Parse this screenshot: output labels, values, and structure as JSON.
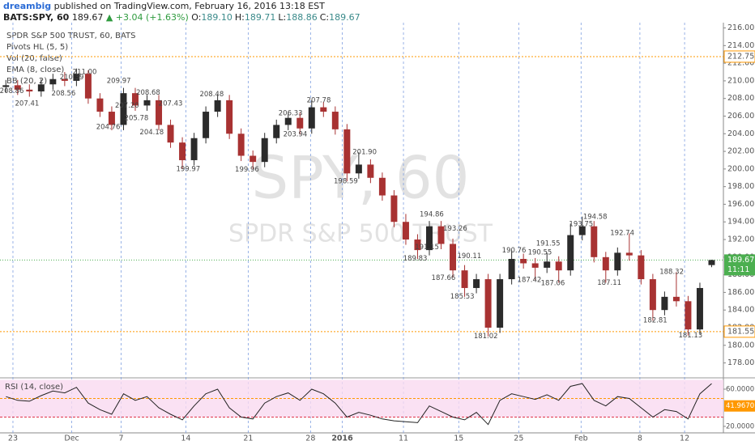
{
  "header": {
    "author": "dreambig",
    "published": "published on TradingView.com, February 16, 2016 13:18 EST",
    "symbol": "BATS:SPY, 60",
    "last": "189.67",
    "change": "▲ +3.04 (+1.63%)",
    "ohlc": [
      {
        "key": "O:",
        "value": "189.10"
      },
      {
        "key": "H:",
        "value": "189.71"
      },
      {
        "key": "L:",
        "value": "188.86"
      },
      {
        "key": "C:",
        "value": "189.67"
      }
    ]
  },
  "legend": [
    "SPDR S&P 500 TRUST, 60, BATS",
    "Pivots HL (5, 5)",
    "Vol (20, false)",
    "EMA (8, close)",
    "BB (20, 2)"
  ],
  "watermark": {
    "symbol": "SPY, 60",
    "name": "SPDR S&P 500 TRUST"
  },
  "chart_data": [
    {
      "type": "candlestick",
      "xlim": [
        -0.5,
        61
      ],
      "xticks": [
        {
          "value": 0.6,
          "label": "23"
        },
        {
          "value": 5.6,
          "label": "Dec"
        },
        {
          "value": 9.8,
          "label": "7"
        },
        {
          "value": 15.3,
          "label": "14"
        },
        {
          "value": 20.6,
          "label": "21"
        },
        {
          "value": 25.9,
          "label": "28"
        },
        {
          "value": 28.6,
          "label": "2016"
        },
        {
          "value": 33.8,
          "label": "11"
        },
        {
          "value": 38.5,
          "label": "15"
        },
        {
          "value": 43.6,
          "label": "25"
        },
        {
          "value": 48.9,
          "label": "Feb"
        },
        {
          "value": 53.9,
          "label": "8"
        },
        {
          "value": 57.7,
          "label": "12"
        }
      ],
      "ylim": [
        176.4,
        216.6
      ],
      "yticks": [
        {
          "value": 178,
          "label": "178.00"
        },
        {
          "value": 180,
          "label": "180.00"
        },
        {
          "value": 182,
          "label": "182.00"
        },
        {
          "value": 184,
          "label": "184.00"
        },
        {
          "value": 186,
          "label": "186.00"
        },
        {
          "value": 188,
          "label": "188.00"
        },
        {
          "value": 190,
          "label": "190.00"
        },
        {
          "value": 192,
          "label": "192.00"
        },
        {
          "value": 194,
          "label": "194.00"
        },
        {
          "value": 196,
          "label": "196.00"
        },
        {
          "value": 198,
          "label": "198.00"
        },
        {
          "value": 200,
          "label": "200.00"
        },
        {
          "value": 202,
          "label": "202.00"
        },
        {
          "value": 204,
          "label": "204.00"
        },
        {
          "value": 206,
          "label": "206.00"
        },
        {
          "value": 208,
          "label": "208.00"
        },
        {
          "value": 210,
          "label": "210.00"
        },
        {
          "value": 212,
          "label": "212.00"
        },
        {
          "value": 214,
          "label": "214.00"
        },
        {
          "value": 216,
          "label": "216.00"
        }
      ],
      "colors": {
        "up": "#2b2b2b",
        "down": "#a83232",
        "grid": "#7f9fe0"
      },
      "candles": {
        "open": [
          209.3,
          209.5,
          209.0,
          208.8,
          209.6,
          210.2,
          210.0,
          210.8,
          208.0,
          206.5,
          205.0,
          208.6,
          207.2,
          207.8,
          205.0,
          203.0,
          201.0,
          203.5,
          206.5,
          207.8,
          204.0,
          201.5,
          200.8,
          203.5,
          205.0,
          205.8,
          204.6,
          207.0,
          206.5,
          204.5,
          199.5,
          200.5,
          199.0,
          197.0,
          194.0,
          192.0,
          190.8,
          193.5,
          191.5,
          188.5,
          186.5,
          187.5,
          182.0,
          187.5,
          189.8,
          189.3,
          188.8,
          189.5,
          188.5,
          192.5,
          193.5,
          190.0,
          188.5,
          190.5,
          190.2,
          187.5,
          184.0,
          185.5,
          185.0,
          181.8,
          189.1
        ],
        "high": [
          210.1,
          210.1,
          209.6,
          210.2,
          210.8,
          211.0,
          211.4,
          211.2,
          208.6,
          207.1,
          209.2,
          209.2,
          208.4,
          208.4,
          205.6,
          203.6,
          204.1,
          207.1,
          208.5,
          208.4,
          204.6,
          202.1,
          204.1,
          205.6,
          206.4,
          206.4,
          207.8,
          207.6,
          207.1,
          205.1,
          201.9,
          201.1,
          199.6,
          197.6,
          194.9,
          192.6,
          194.1,
          194.1,
          192.1,
          189.1,
          188.1,
          188.1,
          188.1,
          190.8,
          190.4,
          189.9,
          190.5,
          190.1,
          193.8,
          194.6,
          194.1,
          190.6,
          191.1,
          192.7,
          190.8,
          188.1,
          186.1,
          188.3,
          185.6,
          187.1,
          189.71
        ],
        "low": [
          208.7,
          208.4,
          208.2,
          208.2,
          209.0,
          209.4,
          209.4,
          207.4,
          205.9,
          204.4,
          204.4,
          206.6,
          206.6,
          204.4,
          202.4,
          200.0,
          200.4,
          202.9,
          205.9,
          203.4,
          200.9,
          200.0,
          200.2,
          202.9,
          204.4,
          203.9,
          204.0,
          205.9,
          203.9,
          198.6,
          198.9,
          198.4,
          196.4,
          193.4,
          191.4,
          189.8,
          190.2,
          190.9,
          187.7,
          185.5,
          185.9,
          181.0,
          181.4,
          186.9,
          188.7,
          187.4,
          188.2,
          187.1,
          187.9,
          191.9,
          189.4,
          187.1,
          187.9,
          189.6,
          186.9,
          182.8,
          183.4,
          184.4,
          181.1,
          181.2,
          188.86
        ],
        "close": [
          209.5,
          209.0,
          208.8,
          209.6,
          210.2,
          210.0,
          210.8,
          208.0,
          206.5,
          205.0,
          208.6,
          207.2,
          207.8,
          205.0,
          203.0,
          201.0,
          203.5,
          206.5,
          207.8,
          204.0,
          201.5,
          200.8,
          203.5,
          205.0,
          205.8,
          204.6,
          207.0,
          206.5,
          204.5,
          199.5,
          200.5,
          199.0,
          197.0,
          194.0,
          192.0,
          190.8,
          193.5,
          191.5,
          188.5,
          186.5,
          187.5,
          182.0,
          187.5,
          189.8,
          189.3,
          188.8,
          189.5,
          188.5,
          192.5,
          193.5,
          190.0,
          188.5,
          190.5,
          190.2,
          187.5,
          184.0,
          185.5,
          185.0,
          181.8,
          186.5,
          189.67
        ]
      },
      "pivots": {
        "x": [
          0.5,
          1.8,
          4.9,
          5.6,
          6.7,
          9.6,
          8.7,
          10.3,
          11.1,
          12.1,
          14,
          12.4,
          15.5,
          17.5,
          20.5,
          24.2,
          24.6,
          26.6,
          28.9,
          30.5,
          36.2,
          35.8,
          34.8,
          38.2,
          39.4,
          37.2,
          38.8,
          40.8,
          43.2,
          45.4,
          44.5,
          46.1,
          46.5,
          48.9,
          50.1,
          52.4,
          51.3,
          56.6,
          55.2,
          58.2
        ],
        "values": [
          208.86,
          207.41,
          208.56,
          210.39,
          211.0,
          209.97,
          204.76,
          207.2,
          205.78,
          208.68,
          207.43,
          204.18,
          199.97,
          208.48,
          199.96,
          206.33,
          203.94,
          207.78,
          198.59,
          201.9,
          194.86,
          191.15,
          189.83,
          193.26,
          190.11,
          187.66,
          185.53,
          181.02,
          190.76,
          190.55,
          187.42,
          191.55,
          187.06,
          193.75,
          194.58,
          192.74,
          187.11,
          188.32,
          182.81,
          181.13
        ],
        "value_labels": [
          "208.86",
          "207.41",
          "208.56",
          "210.39",
          "211.00",
          "209.97",
          "204.76",
          "207.20",
          "205.78",
          "208.68",
          "207.43",
          "204.18",
          "199.97",
          "208.48",
          "199.96",
          "206.33",
          "203.94",
          "207.78",
          "198.59",
          "201.90",
          "194.86",
          "191.15",
          "189.83",
          "193.26",
          "190.11",
          "187.66",
          "185.53",
          "181.02",
          "190.76",
          "190.55",
          "187.42",
          "191.55",
          "187.06",
          "193.75",
          "194.58",
          "192.74",
          "187.11",
          "188.32",
          "182.81",
          "181.13"
        ]
      },
      "levels": [
        {
          "value": 212.75,
          "color": "#ff9800"
        },
        {
          "value": 181.55,
          "color": "#ff9800"
        }
      ],
      "last_price": {
        "value": 189.67,
        "color": "#4caf50",
        "countdown": "11:11"
      }
    },
    {
      "type": "line",
      "title": "RSI (14, close)",
      "color": "#222222",
      "values": [
        52,
        48,
        47,
        53,
        58,
        56,
        62,
        45,
        38,
        33,
        55,
        48,
        52,
        40,
        33,
        27,
        42,
        55,
        60,
        40,
        30,
        28,
        45,
        52,
        56,
        48,
        60,
        55,
        45,
        30,
        35,
        32,
        28,
        26,
        25,
        24,
        42,
        36,
        30,
        27,
        35,
        22,
        48,
        55,
        52,
        49,
        54,
        48,
        63,
        66,
        48,
        42,
        52,
        50,
        40,
        30,
        38,
        36,
        28,
        55,
        66
      ],
      "ylim": [
        13,
        71.3
      ],
      "yticks": [
        {
          "value": 20,
          "label": "20.0000"
        },
        {
          "value": 60,
          "label": "60.0000"
        }
      ],
      "band": [
        30,
        70
      ],
      "band_color": "#f9d9f0",
      "levels": [
        {
          "value": 50,
          "color": "#ff9800"
        },
        {
          "value": 30,
          "color": "#e0334a"
        }
      ],
      "marker": {
        "value": 41.967,
        "label": "41.9670",
        "color": "#ff9800"
      }
    }
  ]
}
